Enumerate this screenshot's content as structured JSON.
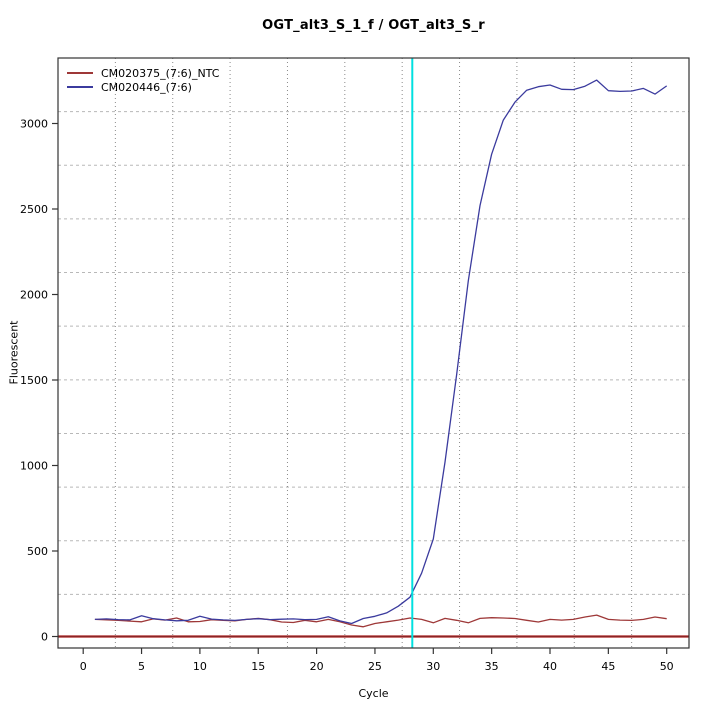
{
  "chart_data": {
    "type": "line",
    "title": "OGT_alt3_S_1_f / OGT_alt3_S_r",
    "xlabel": "Cycle",
    "ylabel": "Fluorescent",
    "xlim": [
      0,
      50
    ],
    "ylim": [
      0,
      3380
    ],
    "x_ticks": [
      0,
      5,
      10,
      15,
      20,
      25,
      30,
      35,
      40,
      45,
      50
    ],
    "y_ticks": [
      0,
      500,
      1000,
      1500,
      2000,
      2500,
      3000
    ],
    "grid": "on",
    "grid_divisions": {
      "nx": 11,
      "ny": 11
    },
    "legend_position": "top-left",
    "x": [
      1,
      2,
      3,
      4,
      5,
      6,
      7,
      8,
      9,
      10,
      11,
      12,
      13,
      14,
      15,
      16,
      17,
      18,
      19,
      20,
      21,
      22,
      23,
      24,
      25,
      26,
      27,
      28,
      29,
      30,
      31,
      32,
      33,
      34,
      35,
      36,
      37,
      38,
      39,
      40,
      41,
      42,
      43,
      44,
      45,
      46,
      47,
      48,
      49,
      50
    ],
    "series": [
      {
        "name": "CM020375_(7:6)_NTC",
        "color": "#9e3838",
        "values": [
          100,
          97,
          94,
          90,
          86,
          103,
          96,
          108,
          86,
          88,
          98,
          95,
          91,
          100,
          106,
          98,
          85,
          82,
          95,
          86,
          100,
          86,
          67,
          57,
          76,
          86,
          96,
          108,
          100,
          80,
          106,
          95,
          80,
          106,
          110,
          108,
          105,
          95,
          85,
          100,
          96,
          100,
          114,
          125,
          100,
          96,
          94,
          100,
          114,
          104
        ]
      },
      {
        "name": "CM020446_(7:6)",
        "color": "#3b3b9e",
        "values": [
          100,
          103,
          99,
          97,
          121,
          104,
          97,
          92,
          95,
          118,
          102,
          97,
          94,
          100,
          104,
          99,
          101,
          103,
          99,
          100,
          115,
          91,
          76,
          105,
          118,
          138,
          177,
          230,
          370,
          570,
          1020,
          1530,
          2080,
          2520,
          2820,
          3020,
          3125,
          3195,
          3215,
          3225,
          3200,
          3198,
          3218,
          3254,
          3192,
          3188,
          3190,
          3205,
          3172,
          3220
        ]
      }
    ],
    "threshold_line": {
      "value": 0,
      "color": "#8b2424",
      "halo_color": "#dd8f8f"
    },
    "ct_line": {
      "cycle": 28.2,
      "color": "#00e0e0"
    },
    "colors": {
      "grid_h": "#b8b8b8",
      "grid_v": "#8a8a8a",
      "axis_box": "#333333",
      "tick_text": "#000000"
    }
  }
}
